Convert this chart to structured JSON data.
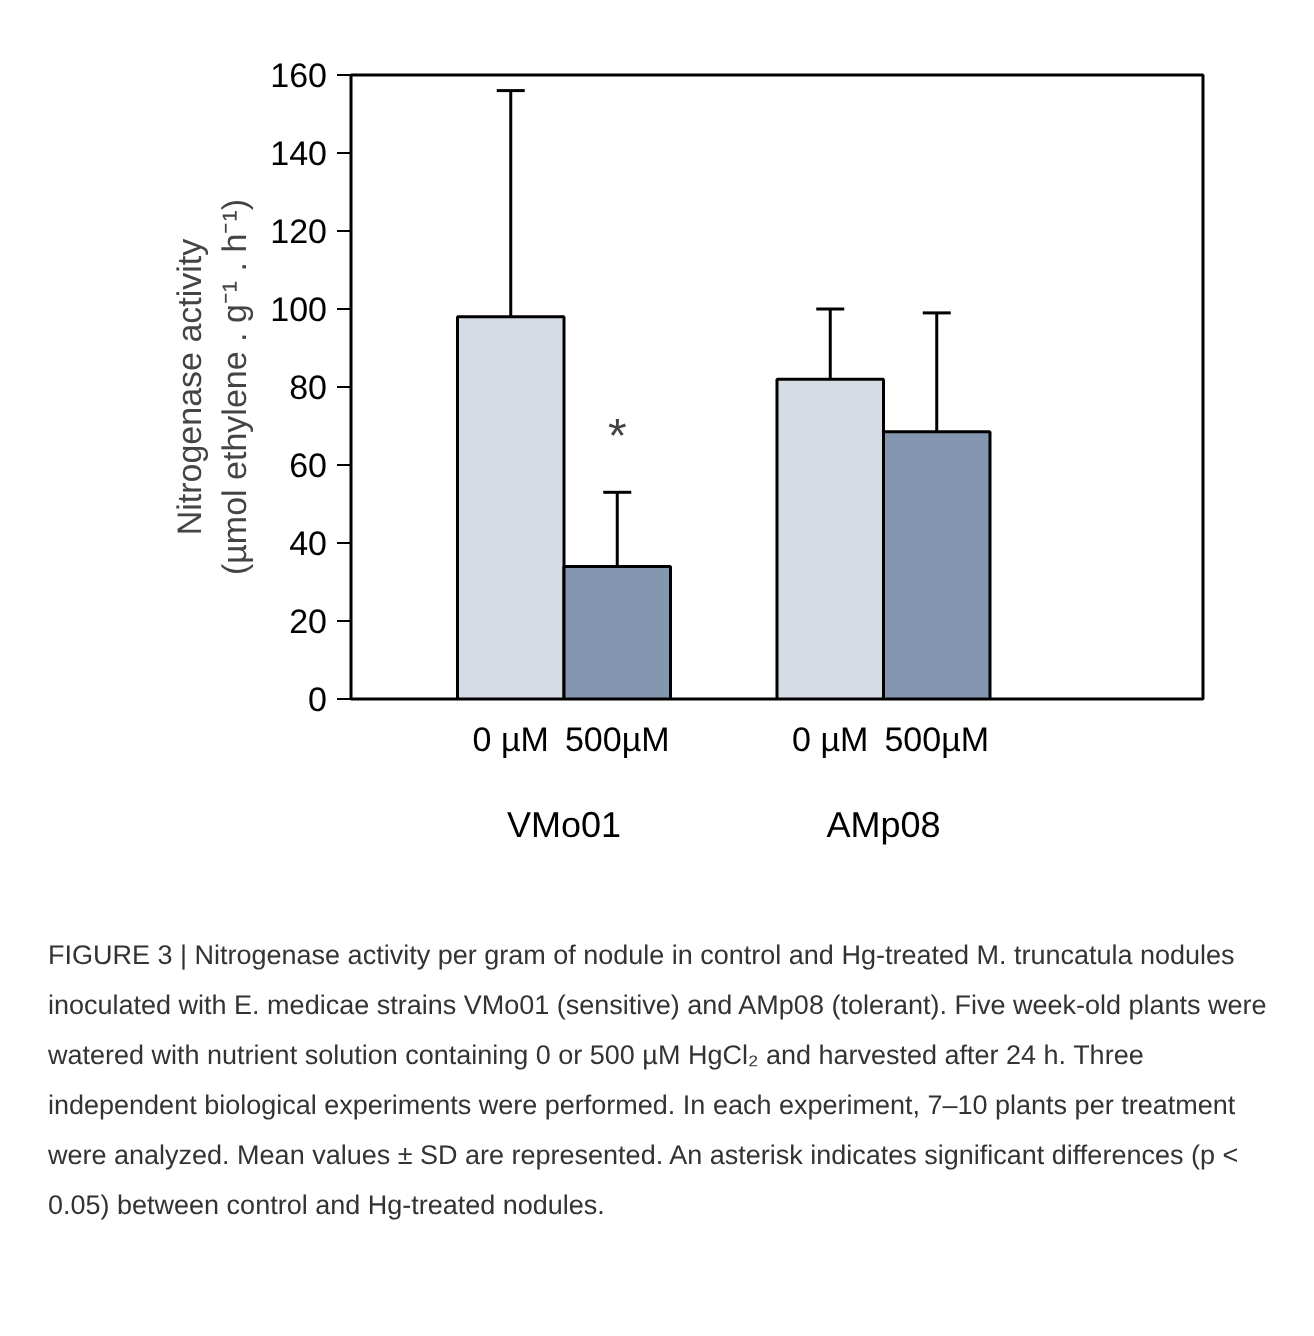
{
  "chart_data": {
    "type": "bar",
    "ylabel": "Nitrogenase activity\n(µmol ethylene . g⁻¹ . h⁻¹)",
    "categories": [
      "0 µM",
      "500µM",
      "0 µM",
      "500µM"
    ],
    "values": [
      98,
      34,
      82,
      68.5
    ],
    "colors": [
      "#d6dce5",
      "#8497b0",
      "#d6dce5",
      "#8497b0"
    ],
    "errors": [
      [
        98,
        156
      ],
      [
        34,
        53
      ],
      [
        82,
        100
      ],
      [
        68.5,
        99
      ]
    ],
    "ylim": [
      0,
      160
    ],
    "yticks": [
      0,
      20,
      40,
      60,
      80,
      100,
      120,
      140,
      160
    ],
    "grid": false,
    "annotations": [
      "*",
      "VMo01",
      "AMp08",
      "FIGURE 3 | Nitrogenase activity per gram of nodule in control and Hg-treated M. truncatula nodules inoculated with E. medicae strains VMo01 (sensitive) and AMp08 (tolerant). Five week-old plants were watered with nutrient solution containing 0 or 500 µM HgCl₂ and harvested after 24 h. Three independent biological experiments were performed. In each experiment, 7–10 plants per treatment were analyzed. Mean values ± SD are represented. An asterisk indicates significant differences (p < 0.05) between control and Hg-treated nodules."
    ]
  }
}
